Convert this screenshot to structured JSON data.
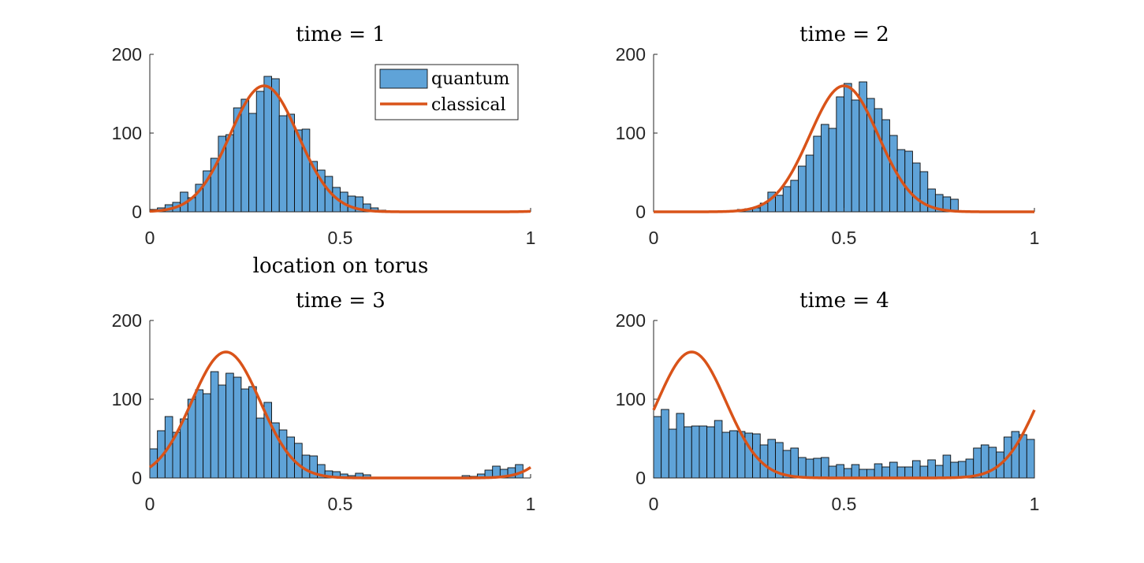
{
  "colors": {
    "bar_fill": "#5fa3d8",
    "bar_edge": "#0d0d0d",
    "curve": "#d95319",
    "axis": "#262626",
    "background": "#ffffff"
  },
  "legend": {
    "quantum": "quantum",
    "classical": "classical",
    "location": "top-right of first panel"
  },
  "chart_data": [
    {
      "type": "bar",
      "title": "time = 1",
      "xlabel": "location on torus",
      "ylabel": "",
      "xlim": [
        0,
        1
      ],
      "ylim": [
        0,
        200
      ],
      "xticks": [
        "0",
        "0.5",
        "1"
      ],
      "yticks": [
        "0",
        "100",
        "200"
      ],
      "bin_width": 0.02,
      "series": [
        {
          "name": "quantum",
          "kind": "histogram",
          "values": [
            3,
            5,
            9,
            12,
            25,
            18,
            35,
            52,
            68,
            96,
            98,
            132,
            143,
            125,
            153,
            172,
            169,
            122,
            124,
            104,
            105,
            64,
            53,
            45,
            31,
            25,
            20,
            19,
            10,
            5,
            2,
            1,
            0,
            0,
            0,
            0,
            0,
            0,
            0,
            0,
            0,
            0,
            0,
            0,
            0,
            0,
            0,
            0,
            0,
            0
          ]
        },
        {
          "name": "classical",
          "kind": "curve",
          "curve": {
            "center": 0.3,
            "sigma": 0.09,
            "peak": 160
          }
        }
      ]
    },
    {
      "type": "bar",
      "title": "time = 2",
      "xlabel": "",
      "ylabel": "",
      "xlim": [
        0,
        1
      ],
      "ylim": [
        0,
        200
      ],
      "xticks": [
        "0",
        "0.5",
        "1"
      ],
      "yticks": [
        "0",
        "100",
        "200"
      ],
      "bin_width": 0.02,
      "series": [
        {
          "name": "quantum",
          "kind": "histogram",
          "values": [
            0,
            0,
            0,
            0,
            0,
            0,
            0,
            0,
            0,
            0,
            1,
            3,
            4,
            5,
            11,
            25,
            21,
            32,
            40,
            58,
            72,
            96,
            111,
            106,
            146,
            163,
            142,
            165,
            144,
            131,
            117,
            97,
            79,
            77,
            62,
            51,
            29,
            22,
            19,
            16,
            0,
            0,
            0,
            0,
            0,
            0,
            0,
            0,
            0,
            0
          ]
        },
        {
          "name": "classical",
          "kind": "curve",
          "curve": {
            "center": 0.5,
            "sigma": 0.09,
            "peak": 160
          }
        }
      ]
    },
    {
      "type": "bar",
      "title": "time = 3",
      "xlabel": "",
      "ylabel": "",
      "xlim": [
        0,
        1
      ],
      "ylim": [
        0,
        200
      ],
      "xticks": [
        "0",
        "0.5",
        "1"
      ],
      "yticks": [
        "0",
        "100",
        "200"
      ],
      "bin_width": 0.02,
      "series": [
        {
          "name": "quantum",
          "kind": "histogram",
          "values": [
            37,
            60,
            78,
            58,
            75,
            100,
            112,
            107,
            135,
            118,
            133,
            128,
            113,
            116,
            76,
            96,
            70,
            61,
            52,
            44,
            29,
            28,
            17,
            9,
            8,
            5,
            3,
            6,
            4,
            0,
            0,
            0,
            0,
            0,
            0,
            0,
            0,
            0,
            0,
            0,
            1,
            3,
            2,
            5,
            10,
            15,
            11,
            13,
            17,
            0
          ]
        },
        {
          "name": "classical",
          "kind": "curve",
          "curve": {
            "center": 0.2,
            "sigma": 0.09,
            "peak": 160
          }
        }
      ]
    },
    {
      "type": "bar",
      "title": "time = 4",
      "xlabel": "",
      "ylabel": "",
      "xlim": [
        0,
        1
      ],
      "ylim": [
        0,
        200
      ],
      "xticks": [
        "0",
        "0.5",
        "1"
      ],
      "yticks": [
        "0",
        "100",
        "200"
      ],
      "bin_width": 0.02,
      "series": [
        {
          "name": "quantum",
          "kind": "histogram",
          "values": [
            78,
            87,
            62,
            82,
            65,
            66,
            66,
            65,
            73,
            58,
            60,
            59,
            57,
            56,
            42,
            49,
            45,
            35,
            38,
            26,
            24,
            25,
            26,
            15,
            17,
            12,
            17,
            11,
            11,
            18,
            14,
            20,
            14,
            14,
            22,
            15,
            23,
            16,
            29,
            20,
            21,
            24,
            38,
            42,
            39,
            33,
            52,
            59,
            55,
            49
          ]
        },
        {
          "name": "classical",
          "kind": "curve",
          "curve": {
            "center": 0.1,
            "sigma": 0.09,
            "peak": 160
          }
        }
      ]
    }
  ]
}
